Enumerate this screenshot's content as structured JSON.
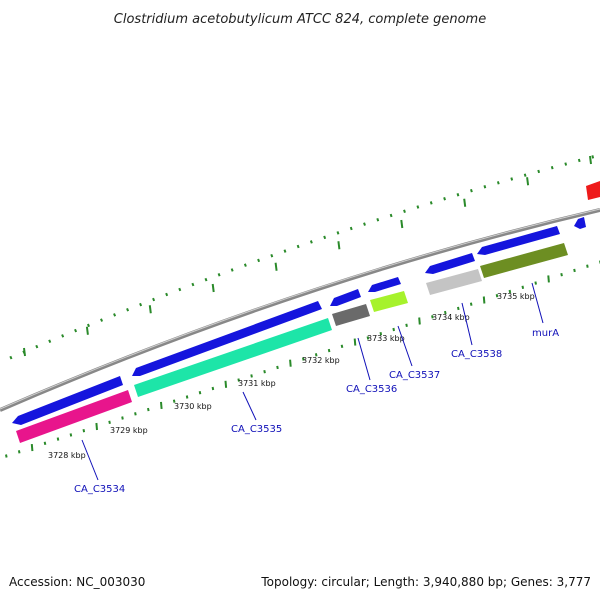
{
  "title": "Clostridium acetobutylicum ATCC 824, complete genome",
  "footer": {
    "accession": "Accession: NC_003030",
    "summary": "Topology: circular; Length: 3,940,880 bp; Genes: 3,777"
  },
  "ticks": [
    {
      "label": "3728 kbp"
    },
    {
      "label": "3729 kbp"
    },
    {
      "label": "3730 kbp"
    },
    {
      "label": "3731 kbp"
    },
    {
      "label": "3732 kbp"
    },
    {
      "label": "3733 kbp"
    },
    {
      "label": "3734 kbp"
    },
    {
      "label": "3735 kbp"
    }
  ],
  "gene_labels": [
    {
      "text": "CA_C3534"
    },
    {
      "text": "CA_C3535"
    },
    {
      "text": "CA_C3536"
    },
    {
      "text": "CA_C3537"
    },
    {
      "text": "CA_C3538"
    },
    {
      "text": "murA"
    }
  ],
  "colors": {
    "backbone": "#888888",
    "cds": "#1515dd",
    "feature_pink": "#e8158c",
    "feature_aqua": "#1de5a8",
    "feature_darkgray": "#6a6a6a",
    "feature_lime": "#a6f22c",
    "feature_lightgray": "#c4c4c4",
    "feature_olive": "#6d8e22",
    "feature_red": "#ee1a1a",
    "tick": "#2a8a2a",
    "gene_label": "#1010b8"
  }
}
